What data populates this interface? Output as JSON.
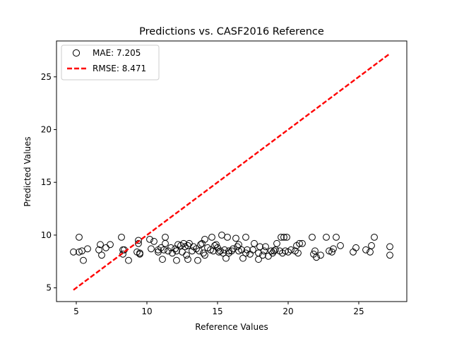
{
  "chart_data": {
    "type": "scatter",
    "title": "Predictions vs. CASF2016 Reference",
    "xlabel": "Reference Values",
    "ylabel": "Predicted Values",
    "xlim": [
      3.6,
      28.4
    ],
    "ylim": [
      3.7,
      28.4
    ],
    "xticks": [
      5,
      10,
      15,
      20,
      25
    ],
    "yticks": [
      5,
      10,
      15,
      20,
      25
    ],
    "legend_position": "upper-left",
    "legend": [
      {
        "label": "MAE: 7.205",
        "marker": "circle"
      },
      {
        "label": "RMSE: 8.471",
        "marker": "dashed-line"
      }
    ],
    "series": [
      {
        "name": "MAE: 7.205",
        "kind": "scatter",
        "marker_edge_color": "#000000",
        "points": [
          [
            4.8,
            8.4
          ],
          [
            5.2,
            9.8
          ],
          [
            5.2,
            8.4
          ],
          [
            5.4,
            8.5
          ],
          [
            5.5,
            7.6
          ],
          [
            5.8,
            8.7
          ],
          [
            6.6,
            8.6
          ],
          [
            6.7,
            9.1
          ],
          [
            6.8,
            8.1
          ],
          [
            7.1,
            8.8
          ],
          [
            7.4,
            9.1
          ],
          [
            8.2,
            9.8
          ],
          [
            8.3,
            8.6
          ],
          [
            8.3,
            8.2
          ],
          [
            8.4,
            8.6
          ],
          [
            8.7,
            7.6
          ],
          [
            9.3,
            8.4
          ],
          [
            9.4,
            9.5
          ],
          [
            9.4,
            9.2
          ],
          [
            9.5,
            8.3
          ],
          [
            9.5,
            8.2
          ],
          [
            10.2,
            9.6
          ],
          [
            10.3,
            8.7
          ],
          [
            10.5,
            9.4
          ],
          [
            10.8,
            8.6
          ],
          [
            10.8,
            8.4
          ],
          [
            11.0,
            8.8
          ],
          [
            11.1,
            7.7
          ],
          [
            11.2,
            8.6
          ],
          [
            11.3,
            9.2
          ],
          [
            11.3,
            9.8
          ],
          [
            11.5,
            8.5
          ],
          [
            11.7,
            8.8
          ],
          [
            11.8,
            8.3
          ],
          [
            12.0,
            8.7
          ],
          [
            12.1,
            8.5
          ],
          [
            12.1,
            7.6
          ],
          [
            12.2,
            9.1
          ],
          [
            12.4,
            9.0
          ],
          [
            12.5,
            8.4
          ],
          [
            12.6,
            9.2
          ],
          [
            12.7,
            8.9
          ],
          [
            12.8,
            8.1
          ],
          [
            12.9,
            9.0
          ],
          [
            12.9,
            7.7
          ],
          [
            13.0,
            9.2
          ],
          [
            13.2,
            8.5
          ],
          [
            13.3,
            8.9
          ],
          [
            13.5,
            8.7
          ],
          [
            13.6,
            7.6
          ],
          [
            13.7,
            8.5
          ],
          [
            13.8,
            9.1
          ],
          [
            13.9,
            9.2
          ],
          [
            14.0,
            8.3
          ],
          [
            14.1,
            8.1
          ],
          [
            14.1,
            9.6
          ],
          [
            14.3,
            8.8
          ],
          [
            14.5,
            8.6
          ],
          [
            14.6,
            9.8
          ],
          [
            14.7,
            8.5
          ],
          [
            14.8,
            9.0
          ],
          [
            14.9,
            9.1
          ],
          [
            15.0,
            8.8
          ],
          [
            15.1,
            8.4
          ],
          [
            15.2,
            8.5
          ],
          [
            15.3,
            10.0
          ],
          [
            15.4,
            8.3
          ],
          [
            15.5,
            8.6
          ],
          [
            15.6,
            7.8
          ],
          [
            15.7,
            9.8
          ],
          [
            15.8,
            8.5
          ],
          [
            15.8,
            8.3
          ],
          [
            16.0,
            8.5
          ],
          [
            16.1,
            8.7
          ],
          [
            16.3,
            9.7
          ],
          [
            16.4,
            8.9
          ],
          [
            16.5,
            9.1
          ],
          [
            16.5,
            8.5
          ],
          [
            16.7,
            8.6
          ],
          [
            16.8,
            7.8
          ],
          [
            17.0,
            9.8
          ],
          [
            17.0,
            8.3
          ],
          [
            17.1,
            8.6
          ],
          [
            17.3,
            8.2
          ],
          [
            17.5,
            8.6
          ],
          [
            17.6,
            9.2
          ],
          [
            17.9,
            8.3
          ],
          [
            17.9,
            7.7
          ],
          [
            18.0,
            8.9
          ],
          [
            18.2,
            8.1
          ],
          [
            18.3,
            8.5
          ],
          [
            18.4,
            8.9
          ],
          [
            18.6,
            8.0
          ],
          [
            18.8,
            8.5
          ],
          [
            18.9,
            8.3
          ],
          [
            19.0,
            8.5
          ],
          [
            19.1,
            8.6
          ],
          [
            19.2,
            9.2
          ],
          [
            19.4,
            8.5
          ],
          [
            19.5,
            9.8
          ],
          [
            19.6,
            8.3
          ],
          [
            19.7,
            9.8
          ],
          [
            19.8,
            8.5
          ],
          [
            19.9,
            9.8
          ],
          [
            20.0,
            8.4
          ],
          [
            20.2,
            8.6
          ],
          [
            20.5,
            8.5
          ],
          [
            20.6,
            9.0
          ],
          [
            20.7,
            8.3
          ],
          [
            20.8,
            9.2
          ],
          [
            21.0,
            9.2
          ],
          [
            21.7,
            9.8
          ],
          [
            21.8,
            8.2
          ],
          [
            21.9,
            8.5
          ],
          [
            22.0,
            7.9
          ],
          [
            22.3,
            8.1
          ],
          [
            22.7,
            9.8
          ],
          [
            22.9,
            8.5
          ],
          [
            23.1,
            8.4
          ],
          [
            23.2,
            8.7
          ],
          [
            23.4,
            9.8
          ],
          [
            23.7,
            9.0
          ],
          [
            24.6,
            8.4
          ],
          [
            24.8,
            8.8
          ],
          [
            25.5,
            8.6
          ],
          [
            25.8,
            8.4
          ],
          [
            25.9,
            9.0
          ],
          [
            26.1,
            9.8
          ],
          [
            27.2,
            8.9
          ],
          [
            27.2,
            8.1
          ]
        ]
      },
      {
        "name": "RMSE: 8.471",
        "kind": "line",
        "color": "#ff0000",
        "points": [
          [
            4.8,
            4.8
          ],
          [
            27.2,
            27.2
          ]
        ]
      }
    ]
  }
}
